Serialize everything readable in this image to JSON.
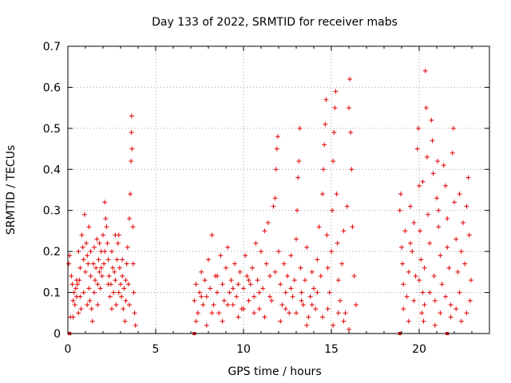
{
  "chart_data": {
    "type": "scatter",
    "title": "Day 133 of 2022, SRMTID for receiver mabs",
    "xlabel": "GPS time / hours",
    "ylabel": "SRMTID / TECUs",
    "xlim": [
      0,
      24
    ],
    "ylim": [
      0,
      0.7
    ],
    "x_ticks": [
      0,
      5,
      10,
      15,
      20
    ],
    "x_tick_labels": [
      "0",
      "5",
      "10",
      "15",
      "20"
    ],
    "y_ticks": [
      0,
      0.1,
      0.2,
      0.3,
      0.4,
      0.5,
      0.6,
      0.7
    ],
    "y_tick_labels": [
      "0",
      "0.1",
      "0.2",
      "0.3",
      "0.4",
      "0.5",
      "0.6",
      "0.7"
    ],
    "grid": true,
    "marker_color": "#e00000",
    "marker": "plus",
    "series": [
      {
        "name": "SRMTID",
        "points": [
          [
            0.05,
            0.17
          ],
          [
            0.1,
            0.19
          ],
          [
            0.15,
            0.04
          ],
          [
            0.2,
            0.14
          ],
          [
            0.25,
            0.12
          ],
          [
            0.3,
            0.08
          ],
          [
            0.35,
            0.1
          ],
          [
            0.4,
            0.07
          ],
          [
            0.45,
            0.11
          ],
          [
            0.5,
            0.09
          ],
          [
            0.55,
            0.12
          ],
          [
            0.6,
            0.05
          ],
          [
            0.65,
            0.13
          ],
          [
            0.7,
            0.09
          ],
          [
            0.75,
            0.06
          ],
          [
            0.8,
            0.24
          ],
          [
            0.85,
            0.21
          ],
          [
            0.9,
            0.18
          ],
          [
            0.95,
            0.29
          ],
          [
            1.0,
            0.15
          ],
          [
            1.05,
            0.22
          ],
          [
            1.1,
            0.19
          ],
          [
            1.15,
            0.17
          ],
          [
            1.2,
            0.11
          ],
          [
            1.25,
            0.08
          ],
          [
            1.3,
            0.14
          ],
          [
            1.35,
            0.06
          ],
          [
            1.4,
            0.03
          ],
          [
            1.45,
            0.17
          ],
          [
            1.5,
            0.21
          ],
          [
            1.55,
            0.13
          ],
          [
            1.6,
            0.16
          ],
          [
            1.65,
            0.23
          ],
          [
            1.7,
            0.12
          ],
          [
            1.75,
            0.18
          ],
          [
            1.8,
            0.15
          ],
          [
            1.85,
            0.11
          ],
          [
            1.9,
            0.2
          ],
          [
            1.95,
            0.14
          ],
          [
            2.0,
            0.24
          ],
          [
            2.05,
            0.17
          ],
          [
            2.1,
            0.32
          ],
          [
            2.15,
            0.28
          ],
          [
            2.2,
            0.26
          ],
          [
            2.25,
            0.22
          ],
          [
            2.3,
            0.18
          ],
          [
            2.35,
            0.14
          ],
          [
            2.4,
            0.09
          ],
          [
            2.45,
            0.12
          ],
          [
            2.5,
            0.2
          ],
          [
            2.55,
            0.16
          ],
          [
            2.6,
            0.1
          ],
          [
            2.65,
            0.15
          ],
          [
            2.7,
            0.13
          ],
          [
            2.75,
            0.07
          ],
          [
            2.8,
            0.18
          ],
          [
            2.85,
            0.22
          ],
          [
            2.9,
            0.24
          ],
          [
            2.95,
            0.16
          ],
          [
            3.0,
            0.12
          ],
          [
            3.05,
            0.09
          ],
          [
            3.1,
            0.14
          ],
          [
            3.15,
            0.06
          ],
          [
            3.2,
            0.11
          ],
          [
            3.25,
            0.03
          ],
          [
            3.3,
            0.08
          ],
          [
            3.35,
            0.17
          ],
          [
            3.4,
            0.21
          ],
          [
            3.45,
            0.12
          ],
          [
            3.5,
            0.28
          ],
          [
            3.55,
            0.34
          ],
          [
            3.6,
            0.42
          ],
          [
            3.62,
            0.49
          ],
          [
            3.63,
            0.53
          ],
          [
            3.65,
            0.45
          ],
          [
            3.7,
            0.26
          ],
          [
            3.72,
            0.17
          ],
          [
            3.75,
            0.1
          ],
          [
            3.8,
            0.05
          ],
          [
            3.85,
            0.02
          ],
          [
            0.3,
            0.04
          ],
          [
            0.5,
            0.13
          ],
          [
            0.7,
            0.16
          ],
          [
            0.9,
            0.1
          ],
          [
            1.1,
            0.07
          ],
          [
            1.3,
            0.2
          ],
          [
            1.5,
            0.1
          ],
          [
            1.7,
            0.07
          ],
          [
            1.9,
            0.16
          ],
          [
            2.1,
            0.2
          ],
          [
            2.3,
            0.12
          ],
          [
            2.5,
            0.06
          ],
          [
            2.7,
            0.24
          ],
          [
            2.9,
            0.1
          ],
          [
            3.1,
            0.18
          ],
          [
            3.3,
            0.13
          ],
          [
            3.5,
            0.07
          ],
          [
            0.6,
            0.2
          ],
          [
            1.2,
            0.26
          ],
          [
            1.8,
            0.22
          ],
          [
            7.2,
            0.08
          ],
          [
            7.3,
            0.12
          ],
          [
            7.4,
            0.05
          ],
          [
            7.5,
            0.1
          ],
          [
            7.6,
            0.15
          ],
          [
            7.7,
            0.07
          ],
          [
            7.8,
            0.13
          ],
          [
            7.9,
            0.09
          ],
          [
            8.0,
            0.18
          ],
          [
            8.1,
            0.11
          ],
          [
            8.2,
            0.24
          ],
          [
            8.3,
            0.07
          ],
          [
            8.4,
            0.14
          ],
          [
            8.5,
            0.1
          ],
          [
            8.6,
            0.05
          ],
          [
            8.7,
            0.19
          ],
          [
            8.8,
            0.12
          ],
          [
            8.9,
            0.08
          ],
          [
            9.0,
            0.16
          ],
          [
            9.1,
            0.21
          ],
          [
            9.2,
            0.1
          ],
          [
            9.3,
            0.13
          ],
          [
            9.4,
            0.07
          ],
          [
            9.5,
            0.17
          ],
          [
            9.6,
            0.09
          ],
          [
            9.7,
            0.12
          ],
          [
            9.8,
            0.15
          ],
          [
            9.9,
            0.06
          ],
          [
            10.0,
            0.11
          ],
          [
            10.1,
            0.19
          ],
          [
            10.2,
            0.14
          ],
          [
            10.3,
            0.08
          ],
          [
            10.4,
            0.12
          ],
          [
            10.5,
            0.16
          ],
          [
            10.6,
            0.09
          ],
          [
            10.7,
            0.22
          ],
          [
            10.8,
            0.13
          ],
          [
            10.9,
            0.06
          ],
          [
            11.0,
            0.2
          ],
          [
            11.1,
            0.11
          ],
          [
            11.2,
            0.25
          ],
          [
            11.3,
            0.17
          ],
          [
            11.4,
            0.27
          ],
          [
            11.5,
            0.14
          ],
          [
            11.6,
            0.08
          ],
          [
            11.7,
            0.31
          ],
          [
            11.8,
            0.33
          ],
          [
            11.85,
            0.4
          ],
          [
            11.9,
            0.45
          ],
          [
            11.95,
            0.48
          ],
          [
            12.0,
            0.2
          ],
          [
            12.1,
            0.12
          ],
          [
            12.2,
            0.07
          ],
          [
            12.3,
            0.17
          ],
          [
            12.4,
            0.1
          ],
          [
            12.5,
            0.14
          ],
          [
            12.6,
            0.05
          ],
          [
            12.7,
            0.19
          ],
          [
            12.8,
            0.09
          ],
          [
            12.9,
            0.13
          ],
          [
            13.0,
            0.23
          ],
          [
            13.05,
            0.3
          ],
          [
            13.1,
            0.38
          ],
          [
            13.15,
            0.42
          ],
          [
            13.2,
            0.5
          ],
          [
            13.25,
            0.16
          ],
          [
            13.3,
            0.1
          ],
          [
            13.4,
            0.07
          ],
          [
            13.5,
            0.13
          ],
          [
            13.6,
            0.21
          ],
          [
            13.7,
            0.04
          ],
          [
            13.8,
            0.09
          ],
          [
            13.9,
            0.15
          ],
          [
            14.0,
            0.11
          ],
          [
            14.1,
            0.06
          ],
          [
            14.2,
            0.18
          ],
          [
            14.3,
            0.26
          ],
          [
            14.4,
            0.14
          ],
          [
            14.5,
            0.34
          ],
          [
            14.55,
            0.4
          ],
          [
            14.6,
            0.46
          ],
          [
            14.65,
            0.51
          ],
          [
            14.7,
            0.57
          ],
          [
            14.75,
            0.24
          ],
          [
            14.8,
            0.16
          ],
          [
            14.9,
            0.1
          ],
          [
            15.0,
            0.2
          ],
          [
            15.05,
            0.3
          ],
          [
            15.1,
            0.42
          ],
          [
            15.15,
            0.49
          ],
          [
            15.2,
            0.55
          ],
          [
            15.25,
            0.59
          ],
          [
            15.3,
            0.34
          ],
          [
            15.35,
            0.22
          ],
          [
            15.4,
            0.13
          ],
          [
            15.5,
            0.08
          ],
          [
            15.6,
            0.17
          ],
          [
            15.7,
            0.25
          ],
          [
            15.8,
            0.05
          ],
          [
            15.9,
            0.31
          ],
          [
            16.0,
            0.55
          ],
          [
            16.05,
            0.62
          ],
          [
            16.1,
            0.49
          ],
          [
            16.15,
            0.4
          ],
          [
            16.2,
            0.26
          ],
          [
            16.3,
            0.14
          ],
          [
            16.4,
            0.07
          ],
          [
            7.3,
            0.03
          ],
          [
            7.6,
            0.09
          ],
          [
            7.9,
            0.02
          ],
          [
            8.2,
            0.05
          ],
          [
            8.5,
            0.14
          ],
          [
            8.8,
            0.03
          ],
          [
            9.1,
            0.07
          ],
          [
            9.4,
            0.11
          ],
          [
            9.7,
            0.04
          ],
          [
            10.0,
            0.06
          ],
          [
            10.3,
            0.13
          ],
          [
            10.6,
            0.05
          ],
          [
            10.9,
            0.1
          ],
          [
            11.2,
            0.04
          ],
          [
            11.5,
            0.09
          ],
          [
            11.8,
            0.15
          ],
          [
            12.1,
            0.03
          ],
          [
            12.4,
            0.06
          ],
          [
            12.7,
            0.11
          ],
          [
            13.0,
            0.05
          ],
          [
            13.3,
            0.08
          ],
          [
            13.6,
            0.02
          ],
          [
            13.9,
            0.07
          ],
          [
            14.2,
            0.1
          ],
          [
            14.5,
            0.04
          ],
          [
            14.8,
            0.06
          ],
          [
            15.1,
            0.02
          ],
          [
            15.4,
            0.05
          ],
          [
            15.7,
            0.03
          ],
          [
            16.0,
            0.01
          ],
          [
            18.9,
            0.3
          ],
          [
            18.95,
            0.34
          ],
          [
            19.0,
            0.21
          ],
          [
            19.05,
            0.17
          ],
          [
            19.1,
            0.12
          ],
          [
            19.2,
            0.25
          ],
          [
            19.3,
            0.09
          ],
          [
            19.4,
            0.15
          ],
          [
            19.5,
            0.31
          ],
          [
            19.6,
            0.2
          ],
          [
            19.7,
            0.27
          ],
          [
            19.8,
            0.14
          ],
          [
            19.9,
            0.45
          ],
          [
            19.95,
            0.5
          ],
          [
            20.0,
            0.36
          ],
          [
            20.05,
            0.25
          ],
          [
            20.1,
            0.18
          ],
          [
            20.15,
            0.05
          ],
          [
            20.2,
            0.1
          ],
          [
            20.25,
            0.03
          ],
          [
            20.3,
            0.16
          ],
          [
            20.35,
            0.64
          ],
          [
            20.4,
            0.55
          ],
          [
            20.45,
            0.43
          ],
          [
            20.5,
            0.29
          ],
          [
            20.6,
            0.22
          ],
          [
            20.7,
            0.52
          ],
          [
            20.75,
            0.47
          ],
          [
            20.8,
            0.39
          ],
          [
            20.85,
            0.14
          ],
          [
            20.9,
            0.08
          ],
          [
            21.0,
            0.33
          ],
          [
            21.05,
            0.42
          ],
          [
            21.1,
            0.26
          ],
          [
            21.2,
            0.19
          ],
          [
            21.3,
            0.12
          ],
          [
            21.4,
            0.41
          ],
          [
            21.5,
            0.36
          ],
          [
            21.6,
            0.28
          ],
          [
            21.7,
            0.16
          ],
          [
            21.8,
            0.07
          ],
          [
            21.9,
            0.44
          ],
          [
            21.95,
            0.5
          ],
          [
            22.0,
            0.32
          ],
          [
            22.1,
            0.23
          ],
          [
            22.2,
            0.15
          ],
          [
            22.3,
            0.1
          ],
          [
            22.4,
            0.2
          ],
          [
            22.5,
            0.27
          ],
          [
            22.6,
            0.17
          ],
          [
            22.7,
            0.31
          ],
          [
            22.8,
            0.38
          ],
          [
            22.85,
            0.24
          ],
          [
            22.9,
            0.08
          ],
          [
            22.95,
            0.13
          ],
          [
            19.1,
            0.06
          ],
          [
            19.4,
            0.03
          ],
          [
            19.7,
            0.08
          ],
          [
            20.0,
            0.13
          ],
          [
            20.3,
            0.07
          ],
          [
            20.6,
            0.1
          ],
          [
            20.9,
            0.02
          ],
          [
            21.2,
            0.05
          ],
          [
            21.5,
            0.09
          ],
          [
            21.8,
            0.04
          ],
          [
            22.1,
            0.06
          ],
          [
            22.4,
            0.03
          ],
          [
            22.7,
            0.05
          ],
          [
            19.5,
            0.22
          ],
          [
            20.2,
            0.37
          ],
          [
            21.1,
            0.3
          ],
          [
            21.6,
            0.21
          ],
          [
            22.3,
            0.34
          ]
        ]
      }
    ],
    "zero_markers": [
      0.1,
      7.2,
      18.9,
      21.6
    ]
  }
}
